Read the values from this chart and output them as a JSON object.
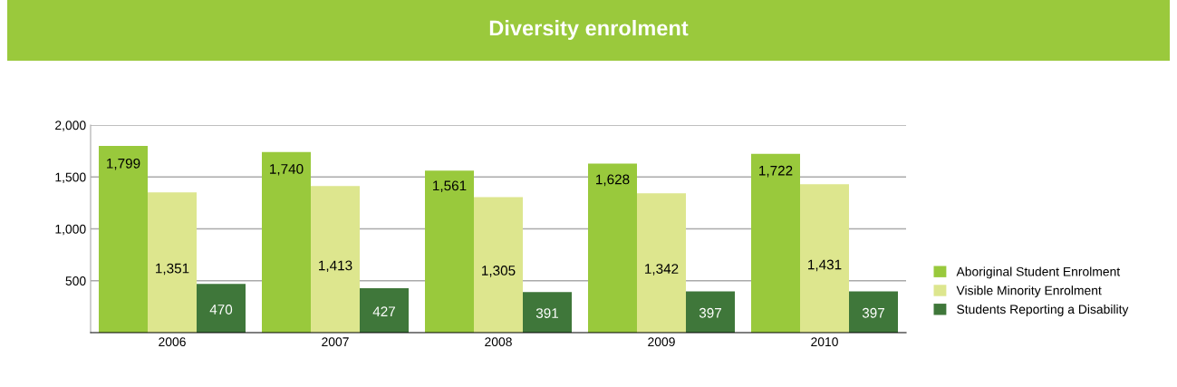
{
  "chart_data": {
    "type": "bar",
    "title": "Diversity enrolment",
    "categories": [
      "2006",
      "2007",
      "2008",
      "2009",
      "2010"
    ],
    "series": [
      {
        "name": "Aboriginal Student Enrolment",
        "color": "#99c93c",
        "values": [
          1799,
          1740,
          1561,
          1628,
          1722
        ],
        "value_labels": [
          "1,799",
          "1,740",
          "1,561",
          "1,628",
          "1,722"
        ]
      },
      {
        "name": "Visible Minority Enrolment",
        "color": "#dde68e",
        "values": [
          1351,
          1413,
          1305,
          1342,
          1431
        ],
        "value_labels": [
          "1,351",
          "1,413",
          "1,305",
          "1,342",
          "1,431"
        ]
      },
      {
        "name": "Students Reporting a Disability",
        "color": "#3f773a",
        "values": [
          470,
          427,
          391,
          397,
          397
        ],
        "value_labels": [
          "470",
          "427",
          "391",
          "397",
          "397"
        ]
      }
    ],
    "ylim": [
      0,
      2000
    ],
    "yticks": [
      {
        "value": 500,
        "label": "500"
      },
      {
        "value": 1000,
        "label": "1,000"
      },
      {
        "value": 1500,
        "label": "1,500"
      },
      {
        "value": 2000,
        "label": "2,000"
      }
    ],
    "grid": "y",
    "legend": "right"
  }
}
